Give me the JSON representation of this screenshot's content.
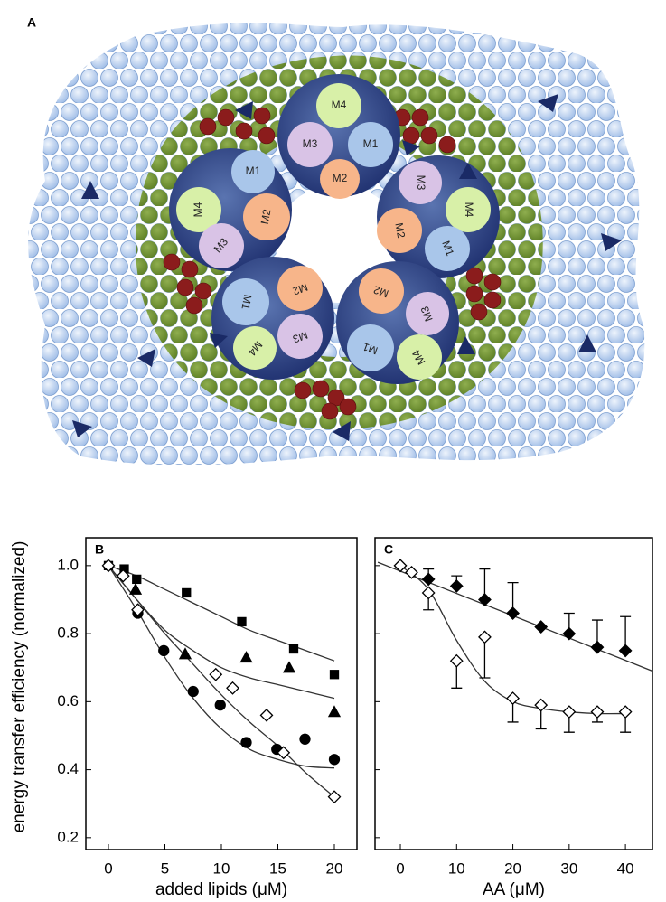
{
  "panel_a": {
    "label": "A",
    "subunits": [
      {
        "labels": [
          "M4",
          "M3",
          "M1",
          "M2"
        ]
      },
      {
        "labels": [
          "M1",
          "M4",
          "M2",
          "M3"
        ]
      },
      {
        "labels": [
          "M3",
          "M4",
          "M2",
          "M1"
        ]
      },
      {
        "labels": [
          "M2",
          "M1",
          "M3",
          "M4"
        ]
      },
      {
        "labels": [
          "M2",
          "M3",
          "M1",
          "M4"
        ]
      }
    ]
  },
  "chart_data": [
    {
      "type": "scatter",
      "panel_label": "B",
      "y_label": "energy transfer efficiency (normalized)",
      "x_label": "added lipids (μM)",
      "xlim": [
        -2,
        22
      ],
      "xticks": [
        0,
        5,
        10,
        15,
        20
      ],
      "ylim": [
        0.165,
        1.082
      ],
      "yticks": [
        {
          "value": 1,
          "label": "1.0"
        },
        0.8,
        0.6,
        0.4,
        0.2
      ],
      "series": [
        {
          "marker": "square",
          "filled": true,
          "color": "#000000",
          "x": [
            0,
            1.4,
            2.5,
            6.9,
            11.8,
            16.4,
            20
          ],
          "values": [
            1.0,
            0.99,
            0.96,
            0.92,
            0.835,
            0.755,
            0.68
          ]
        },
        {
          "marker": "triangle",
          "filled": true,
          "color": "#000000",
          "x": [
            2.4,
            6.8,
            12.2,
            16,
            20
          ],
          "values": [
            0.93,
            0.74,
            0.73,
            0.7,
            0.57
          ]
        },
        {
          "marker": "circle",
          "filled": true,
          "color": "#000000",
          "x": [
            2.6,
            4.9,
            7.5,
            9.9,
            12.2,
            14.9,
            17.4,
            20
          ],
          "values": [
            0.86,
            0.75,
            0.63,
            0.59,
            0.48,
            0.46,
            0.49,
            0.43
          ]
        },
        {
          "marker": "diamond",
          "filled": false,
          "color": "#000000",
          "x": [
            0,
            1.3,
            2.6,
            9.5,
            11,
            14,
            15.5,
            20
          ],
          "values": [
            1.0,
            0.97,
            0.87,
            0.68,
            0.64,
            0.56,
            0.45,
            0.32
          ]
        }
      ],
      "fit_lines": [
        {
          "color": "#333333",
          "x": [
            0,
            2.5,
            5,
            7.5,
            10,
            12.5,
            15,
            17.5,
            20
          ],
          "values": [
            1.0,
            0.97,
            0.93,
            0.89,
            0.85,
            0.81,
            0.78,
            0.75,
            0.72
          ]
        },
        {
          "color": "#333333",
          "x": [
            0,
            2.5,
            5,
            7.5,
            10,
            12.5,
            15,
            17.5,
            20
          ],
          "values": [
            1.0,
            0.9,
            0.81,
            0.75,
            0.7,
            0.67,
            0.65,
            0.63,
            0.61
          ]
        },
        {
          "color": "#333333",
          "x": [
            0,
            2.5,
            5,
            7.5,
            10,
            12.5,
            15,
            17.5,
            20
          ],
          "values": [
            1.0,
            0.87,
            0.73,
            0.61,
            0.52,
            0.46,
            0.43,
            0.41,
            0.405
          ]
        },
        {
          "color": "#333333",
          "x": [
            0,
            2.5,
            5,
            7.5,
            10,
            12.5,
            15,
            17.5,
            20
          ],
          "values": [
            1.0,
            0.9,
            0.8,
            0.71,
            0.62,
            0.54,
            0.47,
            0.39,
            0.32
          ]
        }
      ]
    },
    {
      "type": "scatter",
      "panel_label": "C",
      "x_label": "AA (μM)",
      "xlim": [
        -4.5,
        44.8
      ],
      "xticks": [
        0,
        10,
        20,
        30,
        40
      ],
      "ylim": [
        0.165,
        1.082
      ],
      "series": [
        {
          "marker": "diamond",
          "filled": true,
          "color": "#000000",
          "error_direction": "up",
          "x": [
            0,
            5,
            10,
            15,
            20,
            25,
            30,
            35,
            40
          ],
          "values": [
            1.0,
            0.96,
            0.94,
            0.9,
            0.86,
            0.82,
            0.8,
            0.76,
            0.75
          ],
          "errors": [
            null,
            0.03,
            0.03,
            0.09,
            0.09,
            null,
            0.06,
            0.08,
            0.1
          ]
        },
        {
          "marker": "diamond",
          "filled": false,
          "color": "#000000",
          "error_direction": "down",
          "x": [
            0,
            2,
            5,
            10,
            15,
            20,
            25,
            30,
            35,
            40
          ],
          "values": [
            1.0,
            0.98,
            0.92,
            0.72,
            0.79,
            0.61,
            0.59,
            0.57,
            0.57,
            0.57
          ],
          "errors": [
            null,
            null,
            0.05,
            0.08,
            0.12,
            0.07,
            0.07,
            0.06,
            0.03,
            0.06
          ]
        }
      ],
      "fit_lines": [
        {
          "color": "#333333",
          "x": [
            -4,
            44.8
          ],
          "values": [
            1.01,
            0.69
          ]
        },
        {
          "color": "#333333",
          "x": [
            0,
            5,
            10,
            15,
            20,
            25,
            30,
            35,
            40
          ],
          "values": [
            1.0,
            0.93,
            0.78,
            0.66,
            0.6,
            0.58,
            0.57,
            0.565,
            0.565
          ]
        }
      ]
    }
  ]
}
